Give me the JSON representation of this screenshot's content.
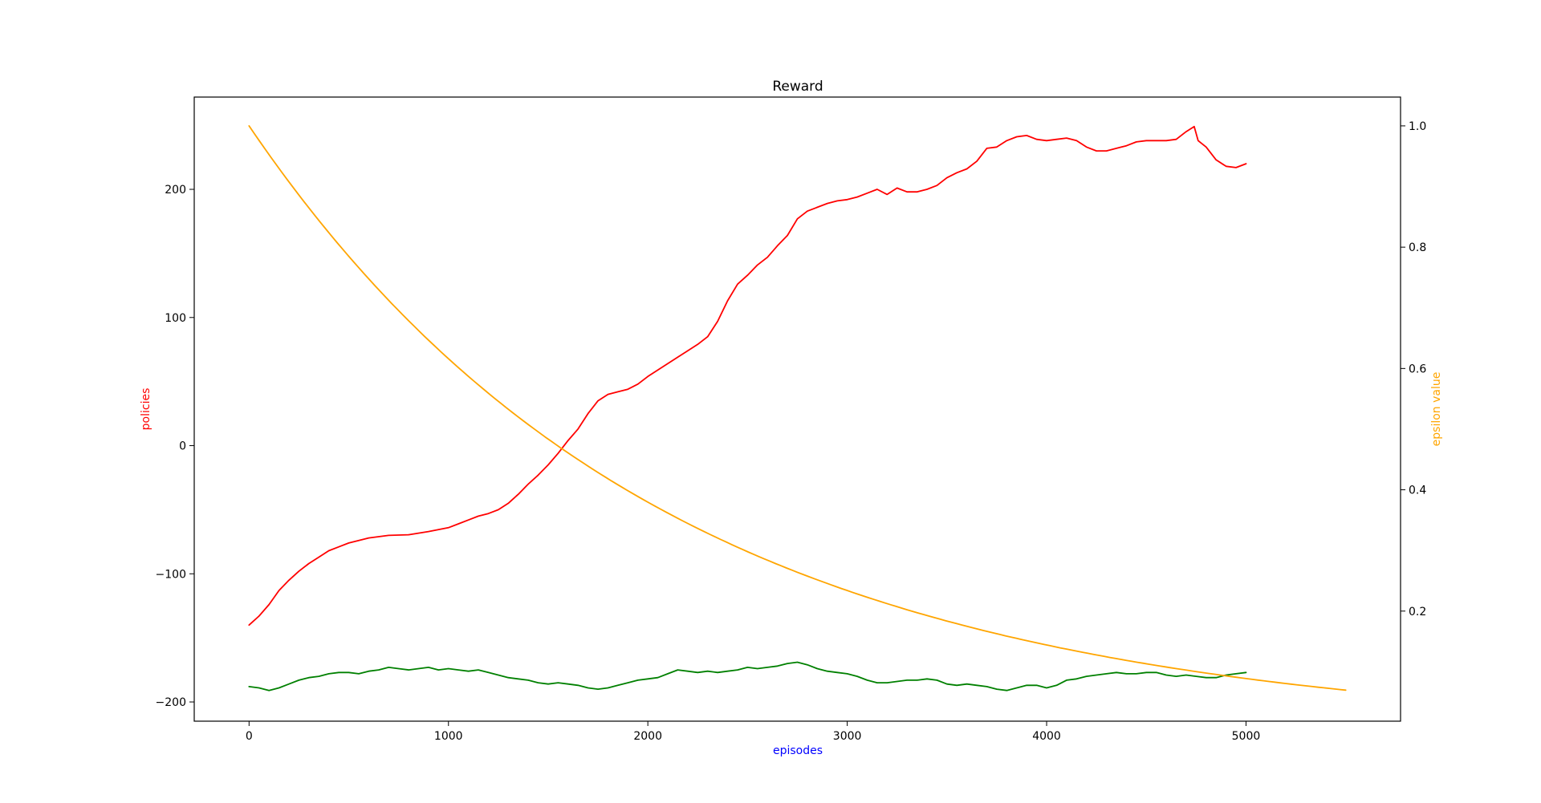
{
  "chart_data": {
    "type": "line",
    "title": "Reward",
    "xlabel": "episodes",
    "ylabel_left": "policies",
    "ylabel_right": "epsilon value",
    "xlim": [
      -275,
      5775
    ],
    "ylim_left": [
      -215,
      272
    ],
    "ylim_right": [
      0.0185,
      1.0475
    ],
    "x_ticks": [
      0,
      1000,
      2000,
      3000,
      4000,
      5000
    ],
    "y_ticks_left": [
      -200,
      -100,
      0,
      100,
      200
    ],
    "y_ticks_right": [
      0.2,
      0.4,
      0.6,
      0.8,
      1.0
    ],
    "y_tick_labels_right": [
      "0.2",
      "0.4",
      "0.6",
      "0.8",
      "1.0"
    ],
    "grid": false,
    "colors": {
      "xlabel": "#0000ff",
      "ylabel_left": "#ff0000",
      "ylabel_right": "#ffa500"
    },
    "series": [
      {
        "axis": "left",
        "color": "#ff0000",
        "points": [
          [
            0,
            -140
          ],
          [
            50,
            -133
          ],
          [
            100,
            -124
          ],
          [
            150,
            -113
          ],
          [
            200,
            -105
          ],
          [
            250,
            -98
          ],
          [
            300,
            -92
          ],
          [
            350,
            -87
          ],
          [
            400,
            -82
          ],
          [
            450,
            -79
          ],
          [
            500,
            -76
          ],
          [
            550,
            -74
          ],
          [
            600,
            -72
          ],
          [
            650,
            -71
          ],
          [
            700,
            -70
          ],
          [
            800,
            -69.5
          ],
          [
            900,
            -67
          ],
          [
            1000,
            -64
          ],
          [
            1050,
            -61
          ],
          [
            1100,
            -58
          ],
          [
            1150,
            -55
          ],
          [
            1200,
            -53
          ],
          [
            1250,
            -50
          ],
          [
            1300,
            -45
          ],
          [
            1350,
            -38
          ],
          [
            1400,
            -30
          ],
          [
            1450,
            -23
          ],
          [
            1500,
            -15
          ],
          [
            1550,
            -6
          ],
          [
            1600,
            4
          ],
          [
            1650,
            13
          ],
          [
            1700,
            25
          ],
          [
            1750,
            35
          ],
          [
            1800,
            40
          ],
          [
            1850,
            42
          ],
          [
            1900,
            44
          ],
          [
            1950,
            48
          ],
          [
            2000,
            54
          ],
          [
            2050,
            59
          ],
          [
            2100,
            64
          ],
          [
            2150,
            69
          ],
          [
            2200,
            74
          ],
          [
            2250,
            79
          ],
          [
            2300,
            85
          ],
          [
            2350,
            97
          ],
          [
            2400,
            113
          ],
          [
            2450,
            126
          ],
          [
            2500,
            133
          ],
          [
            2550,
            141
          ],
          [
            2600,
            147
          ],
          [
            2650,
            156
          ],
          [
            2700,
            164
          ],
          [
            2750,
            177
          ],
          [
            2800,
            183
          ],
          [
            2850,
            186
          ],
          [
            2900,
            189
          ],
          [
            2950,
            191
          ],
          [
            3000,
            192
          ],
          [
            3050,
            194
          ],
          [
            3100,
            197
          ],
          [
            3150,
            200
          ],
          [
            3200,
            196
          ],
          [
            3250,
            201
          ],
          [
            3300,
            198
          ],
          [
            3350,
            198
          ],
          [
            3400,
            200
          ],
          [
            3450,
            203
          ],
          [
            3500,
            209
          ],
          [
            3550,
            213
          ],
          [
            3600,
            216
          ],
          [
            3650,
            222
          ],
          [
            3700,
            232
          ],
          [
            3750,
            233
          ],
          [
            3800,
            238
          ],
          [
            3850,
            241
          ],
          [
            3900,
            242
          ],
          [
            3950,
            239
          ],
          [
            4000,
            238
          ],
          [
            4050,
            239
          ],
          [
            4100,
            240
          ],
          [
            4150,
            238
          ],
          [
            4200,
            233
          ],
          [
            4250,
            230
          ],
          [
            4300,
            230
          ],
          [
            4350,
            232
          ],
          [
            4400,
            234
          ],
          [
            4450,
            237
          ],
          [
            4500,
            238
          ],
          [
            4550,
            238
          ],
          [
            4600,
            238
          ],
          [
            4650,
            239
          ],
          [
            4700,
            245
          ],
          [
            4740,
            249
          ],
          [
            4760,
            238
          ],
          [
            4800,
            233
          ],
          [
            4850,
            223
          ],
          [
            4900,
            218
          ],
          [
            4950,
            217
          ],
          [
            5000,
            220
          ]
        ]
      },
      {
        "axis": "left",
        "color": "#008000",
        "points": [
          [
            0,
            -188
          ],
          [
            50,
            -189
          ],
          [
            100,
            -191
          ],
          [
            150,
            -189
          ],
          [
            200,
            -186
          ],
          [
            250,
            -183
          ],
          [
            300,
            -181
          ],
          [
            350,
            -180
          ],
          [
            400,
            -178
          ],
          [
            450,
            -177
          ],
          [
            500,
            -177
          ],
          [
            550,
            -178
          ],
          [
            600,
            -176
          ],
          [
            650,
            -175
          ],
          [
            700,
            -173
          ],
          [
            750,
            -174
          ],
          [
            800,
            -175
          ],
          [
            850,
            -174
          ],
          [
            900,
            -173
          ],
          [
            950,
            -175
          ],
          [
            1000,
            -174
          ],
          [
            1050,
            -175
          ],
          [
            1100,
            -176
          ],
          [
            1150,
            -175
          ],
          [
            1200,
            -177
          ],
          [
            1250,
            -179
          ],
          [
            1300,
            -181
          ],
          [
            1350,
            -182
          ],
          [
            1400,
            -183
          ],
          [
            1450,
            -185
          ],
          [
            1500,
            -186
          ],
          [
            1550,
            -185
          ],
          [
            1600,
            -186
          ],
          [
            1650,
            -187
          ],
          [
            1700,
            -189
          ],
          [
            1750,
            -190
          ],
          [
            1800,
            -189
          ],
          [
            1850,
            -187
          ],
          [
            1900,
            -185
          ],
          [
            1950,
            -183
          ],
          [
            2000,
            -182
          ],
          [
            2050,
            -181
          ],
          [
            2100,
            -178
          ],
          [
            2150,
            -175
          ],
          [
            2200,
            -176
          ],
          [
            2250,
            -177
          ],
          [
            2300,
            -176
          ],
          [
            2350,
            -177
          ],
          [
            2400,
            -176
          ],
          [
            2450,
            -175
          ],
          [
            2500,
            -173
          ],
          [
            2550,
            -174
          ],
          [
            2600,
            -173
          ],
          [
            2650,
            -172
          ],
          [
            2700,
            -170
          ],
          [
            2750,
            -169
          ],
          [
            2800,
            -171
          ],
          [
            2850,
            -174
          ],
          [
            2900,
            -176
          ],
          [
            2950,
            -177
          ],
          [
            3000,
            -178
          ],
          [
            3050,
            -180
          ],
          [
            3100,
            -183
          ],
          [
            3150,
            -185
          ],
          [
            3200,
            -185
          ],
          [
            3250,
            -184
          ],
          [
            3300,
            -183
          ],
          [
            3350,
            -183
          ],
          [
            3400,
            -182
          ],
          [
            3450,
            -183
          ],
          [
            3500,
            -186
          ],
          [
            3550,
            -187
          ],
          [
            3600,
            -186
          ],
          [
            3650,
            -187
          ],
          [
            3700,
            -188
          ],
          [
            3750,
            -190
          ],
          [
            3800,
            -191
          ],
          [
            3850,
            -189
          ],
          [
            3900,
            -187
          ],
          [
            3950,
            -187
          ],
          [
            4000,
            -189
          ],
          [
            4050,
            -187
          ],
          [
            4100,
            -183
          ],
          [
            4150,
            -182
          ],
          [
            4200,
            -180
          ],
          [
            4250,
            -179
          ],
          [
            4300,
            -178
          ],
          [
            4350,
            -177
          ],
          [
            4400,
            -178
          ],
          [
            4450,
            -178
          ],
          [
            4500,
            -177
          ],
          [
            4550,
            -177
          ],
          [
            4600,
            -179
          ],
          [
            4650,
            -180
          ],
          [
            4700,
            -179
          ],
          [
            4750,
            -180
          ],
          [
            4800,
            -181
          ],
          [
            4850,
            -181
          ],
          [
            4900,
            -179
          ],
          [
            4950,
            -178
          ],
          [
            5000,
            -177
          ]
        ]
      },
      {
        "axis": "right",
        "color": "#ffa500",
        "decay_from": 1.0,
        "decay_to": 0.0697,
        "x_range": [
          0,
          5500
        ]
      }
    ]
  }
}
